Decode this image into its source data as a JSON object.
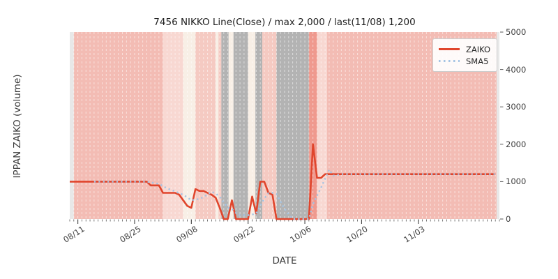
{
  "window": {
    "kind": "chart-figure"
  },
  "chart_data": {
    "type": "line",
    "title": "7456 NIKKO Line(Close) / max 2,000 / last(11/08) 1,200",
    "xlabel": "DATE",
    "ylabel": "IPPAN ZAIKO (volume)",
    "ylim": [
      0,
      5000
    ],
    "yticks": [
      0,
      1000,
      2000,
      3000,
      4000,
      5000
    ],
    "x_axis": {
      "unit": "day",
      "total_days": 106,
      "major_ticks": [
        {
          "index": 2,
          "label": "08/11"
        },
        {
          "index": 16,
          "label": "08/25"
        },
        {
          "index": 30,
          "label": "09/08"
        },
        {
          "index": 44,
          "label": "09/22"
        },
        {
          "index": 58,
          "label": "10/06"
        },
        {
          "index": 72,
          "label": "10/20"
        },
        {
          "index": 86,
          "label": "11/03"
        }
      ],
      "minor_tick_every": 1
    },
    "legend": {
      "position": "upper-right",
      "entries": [
        "ZAIKO",
        "SMA5"
      ]
    },
    "annotations": {
      "max_note": "max 2,000",
      "last_note": "last(11/08) 1,200"
    },
    "series": [
      {
        "name": "ZAIKO",
        "style": "solid",
        "color": "#e0452c",
        "width": 2.6,
        "start_index": 0,
        "values": [
          1000,
          1000,
          1000,
          1000,
          1000,
          1000,
          1000,
          1000,
          1000,
          1000,
          1000,
          1000,
          1000,
          1000,
          1000,
          1000,
          1000,
          1000,
          1000,
          1000,
          900,
          900,
          900,
          700,
          700,
          700,
          700,
          650,
          500,
          350,
          300,
          800,
          750,
          750,
          700,
          650,
          570,
          300,
          0,
          0,
          500,
          0,
          0,
          0,
          0,
          600,
          150,
          1000,
          1000,
          700,
          650,
          0,
          0,
          0,
          0,
          0,
          0,
          0,
          0,
          0,
          2000,
          1100,
          1100,
          1200,
          1200,
          1200,
          1200,
          1200,
          1200,
          1200,
          1200,
          1200,
          1200,
          1200,
          1200,
          1200,
          1200,
          1200,
          1200,
          1200,
          1200,
          1200,
          1200,
          1200,
          1200,
          1200,
          1200,
          1200,
          1200,
          1200,
          1200,
          1200,
          1200,
          1200,
          1200,
          1200,
          1200,
          1200,
          1200,
          1200,
          1200,
          1200,
          1200,
          1200,
          1200,
          1200
        ]
      },
      {
        "name": "SMA5",
        "style": "dotted",
        "color": "#a4c4e4",
        "width": 2.4,
        "start_index": 6,
        "values": [
          1000,
          1000,
          1000,
          1000,
          1000,
          1000,
          1000,
          1000,
          1000,
          1000,
          1000,
          1000,
          1000,
          1000,
          980,
          960,
          940,
          880,
          820,
          780,
          740,
          690,
          650,
          580,
          500,
          520,
          540,
          590,
          660,
          730,
          684,
          594,
          444,
          304,
          274,
          160,
          100,
          100,
          100,
          120,
          150,
          350,
          550,
          690,
          700,
          670,
          470,
          270,
          130,
          0,
          0,
          0,
          0,
          0,
          400,
          620,
          840,
          1080,
          1320,
          1160,
          1180,
          1200,
          1200,
          1200,
          1200,
          1200,
          1200,
          1200,
          1200,
          1200,
          1200,
          1200,
          1200,
          1200,
          1200,
          1200,
          1200,
          1200,
          1200,
          1200,
          1200,
          1200,
          1200,
          1200,
          1200,
          1200,
          1200,
          1200,
          1200,
          1200,
          1200,
          1200,
          1200,
          1200,
          1200,
          1200,
          1200,
          1200,
          1200,
          1200
        ]
      }
    ],
    "background_palette": {
      "edge": "#e8e8e8",
      "salmon": "#f3bcb4",
      "pink_light": "#f8d8d2",
      "pink_mid": "#f5cac2",
      "cream": "#f8efe6",
      "gray": "#b3b3b3",
      "salmon_dark": "#ef998e"
    },
    "background_bands": [
      {
        "from": 0,
        "to": 1,
        "color": "edge"
      },
      {
        "from": 1,
        "to": 23,
        "color": "salmon"
      },
      {
        "from": 23,
        "to": 28,
        "color": "pink_light"
      },
      {
        "from": 28,
        "to": 31,
        "color": "cream"
      },
      {
        "from": 31,
        "to": 36,
        "color": "pink_mid"
      },
      {
        "from": 36,
        "to": 36.7,
        "color": "cream"
      },
      {
        "from": 36.7,
        "to": 37.4,
        "color": "pink_mid"
      },
      {
        "from": 37.4,
        "to": 39.2,
        "color": "gray"
      },
      {
        "from": 39.2,
        "to": 40.4,
        "color": "cream"
      },
      {
        "from": 40.4,
        "to": 44,
        "color": "gray"
      },
      {
        "from": 44,
        "to": 45.8,
        "color": "cream"
      },
      {
        "from": 45.8,
        "to": 47.5,
        "color": "gray"
      },
      {
        "from": 47.5,
        "to": 51,
        "color": "pink_mid"
      },
      {
        "from": 51,
        "to": 59,
        "color": "gray"
      },
      {
        "from": 59,
        "to": 61,
        "color": "salmon_dark"
      },
      {
        "from": 61,
        "to": 63.5,
        "color": "pink_light"
      },
      {
        "from": 63.5,
        "to": 105.3,
        "color": "salmon"
      },
      {
        "from": 105.3,
        "to": 106,
        "color": "edge"
      }
    ]
  }
}
